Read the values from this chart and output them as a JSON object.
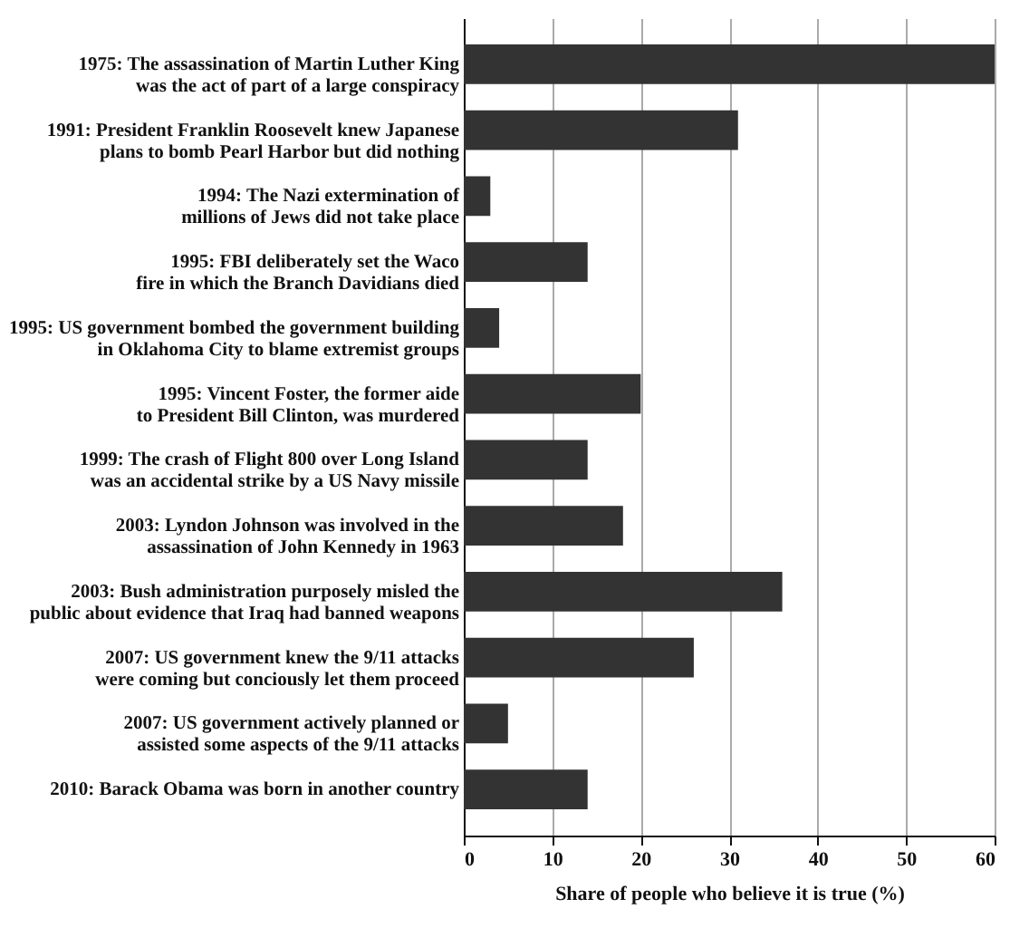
{
  "chart_data": {
    "type": "bar",
    "orientation": "horizontal",
    "categories": [
      "1975: The assassination of Martin Luther King was the act of part of a large conspiracy",
      "1991: President Franklin Roosevelt knew Japanese plans to bomb Pearl Harbor but did nothing",
      "1994: The Nazi extermination of millions of Jews did not take place",
      "1995: FBI deliberately set the Waco fire in which the Branch Davidians died",
      "1995: US government bombed the government building in Oklahoma City to blame extremist groups",
      "1995: Vincent Foster, the former aide to President Bill Clinton, was murdered",
      "1999: The crash of Flight 800 over Long Island was an accidental strike by a US Navy missile",
      "2003: Lyndon Johnson was involved in the assassination of John Kennedy in 1963",
      "2003: Bush administration purposely misled the public about evidence that Iraq had banned weapons",
      "2007: US government knew the 9/11 attacks were coming but conciously let them proceed",
      "2007: US government actively planned or assisted some aspects of the 9/11 attacks",
      "2010: Barack Obama was born in another country"
    ],
    "values": [
      60,
      31,
      3,
      14,
      4,
      20,
      14,
      18,
      36,
      26,
      5,
      14
    ],
    "color": "#333333",
    "xlabel": "Share of people who believe it is true (%)",
    "xlim": [
      0,
      60
    ],
    "xticks": [
      0,
      10,
      20,
      30,
      40,
      50,
      60
    ],
    "grid": "x"
  }
}
